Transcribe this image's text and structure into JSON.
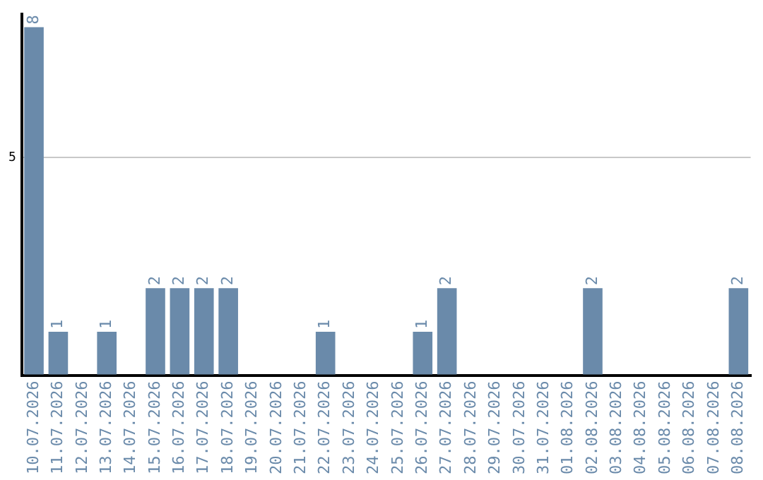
{
  "chart_data": {
    "type": "bar",
    "categories": [
      "10.07.2026",
      "11.07.2026",
      "12.07.2026",
      "13.07.2026",
      "14.07.2026",
      "15.07.2026",
      "16.07.2026",
      "17.07.2026",
      "18.07.2026",
      "19.07.2026",
      "20.07.2026",
      "21.07.2026",
      "22.07.2026",
      "23.07.2026",
      "24.07.2026",
      "25.07.2026",
      "26.07.2026",
      "27.07.2026",
      "28.07.2026",
      "29.07.2026",
      "30.07.2026",
      "31.07.2026",
      "01.08.2026",
      "02.08.2026",
      "03.08.2026",
      "04.08.2026",
      "05.08.2026",
      "06.08.2026",
      "07.08.2026",
      "08.08.2026"
    ],
    "values": [
      8,
      1,
      0,
      1,
      0,
      2,
      2,
      2,
      2,
      0,
      0,
      0,
      1,
      0,
      0,
      0,
      1,
      2,
      0,
      0,
      0,
      0,
      0,
      2,
      0,
      0,
      0,
      0,
      0,
      2
    ],
    "value_labels": [
      "8",
      "1",
      null,
      "1",
      null,
      "2",
      "2",
      "2",
      "2",
      null,
      null,
      null,
      "1",
      null,
      null,
      null,
      "1",
      "2",
      null,
      null,
      null,
      null,
      null,
      "2",
      null,
      null,
      null,
      null,
      null,
      "2"
    ],
    "color": "#6a8aaa",
    "ylim": [
      0,
      8.3
    ],
    "yticks": [
      {
        "value": 0,
        "label": null
      },
      5
    ],
    "grid": "y",
    "legend": false
  }
}
